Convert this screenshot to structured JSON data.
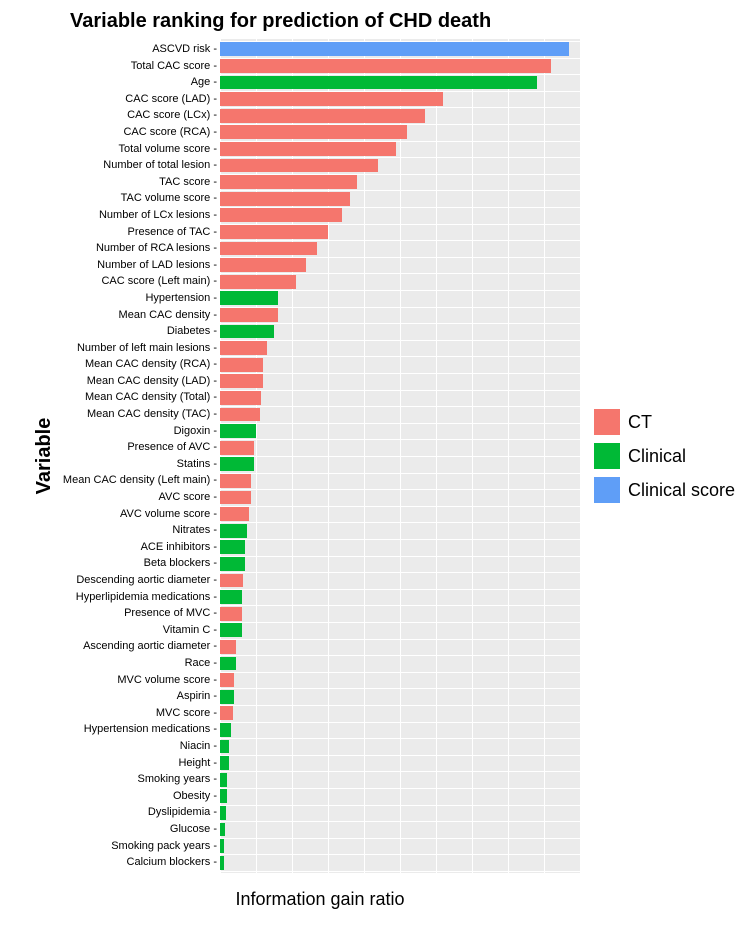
{
  "chart": {
    "type": "bar",
    "title": "Variable ranking for prediction of CHD death",
    "xlabel": "Information gain ratio",
    "ylabel": "Variable",
    "xlim": [
      0,
      1
    ],
    "background_color": "#ebebeb",
    "grid_color": "#ffffff",
    "bar_height_ratio": 0.84,
    "vgrid_steps": 10,
    "title_fontsize": 20,
    "axis_label_fontsize": 18,
    "tick_label_fontsize": 11,
    "legend_fontsize": 18,
    "categories": {
      "CT": {
        "color": "#f5766d",
        "label": "CT"
      },
      "Clinical": {
        "color": "#00b936",
        "label": "Clinical"
      },
      "ClinicalScore": {
        "color": "#5f9ef7",
        "label": "Clinical score"
      }
    },
    "legend_order": [
      "CT",
      "Clinical",
      "ClinicalScore"
    ],
    "items": [
      {
        "label": "ASCVD risk",
        "value": 0.97,
        "cat": "ClinicalScore"
      },
      {
        "label": "Total CAC score",
        "value": 0.92,
        "cat": "CT"
      },
      {
        "label": "Age",
        "value": 0.88,
        "cat": "Clinical"
      },
      {
        "label": "CAC score (LAD)",
        "value": 0.62,
        "cat": "CT"
      },
      {
        "label": "CAC score (LCx)",
        "value": 0.57,
        "cat": "CT"
      },
      {
        "label": "CAC score (RCA)",
        "value": 0.52,
        "cat": "CT"
      },
      {
        "label": "Total volume score",
        "value": 0.49,
        "cat": "CT"
      },
      {
        "label": "Number of total lesion",
        "value": 0.44,
        "cat": "CT"
      },
      {
        "label": "TAC score",
        "value": 0.38,
        "cat": "CT"
      },
      {
        "label": "TAC volume score",
        "value": 0.36,
        "cat": "CT"
      },
      {
        "label": "Number of LCx lesions",
        "value": 0.34,
        "cat": "CT"
      },
      {
        "label": "Presence of TAC",
        "value": 0.3,
        "cat": "CT"
      },
      {
        "label": "Number of RCA lesions",
        "value": 0.27,
        "cat": "CT"
      },
      {
        "label": "Number of LAD lesions",
        "value": 0.24,
        "cat": "CT"
      },
      {
        "label": "CAC score (Left main)",
        "value": 0.21,
        "cat": "CT"
      },
      {
        "label": "Hypertension",
        "value": 0.16,
        "cat": "Clinical"
      },
      {
        "label": "Mean CAC density",
        "value": 0.16,
        "cat": "CT"
      },
      {
        "label": "Diabetes",
        "value": 0.15,
        "cat": "Clinical"
      },
      {
        "label": "Number of left main lesions",
        "value": 0.13,
        "cat": "CT"
      },
      {
        "label": "Mean CAC density (RCA)",
        "value": 0.12,
        "cat": "CT"
      },
      {
        "label": "Mean CAC density (LAD)",
        "value": 0.12,
        "cat": "CT"
      },
      {
        "label": "Mean CAC density (Total)",
        "value": 0.115,
        "cat": "CT"
      },
      {
        "label": "Mean CAC density (TAC)",
        "value": 0.11,
        "cat": "CT"
      },
      {
        "label": "Digoxin",
        "value": 0.1,
        "cat": "Clinical"
      },
      {
        "label": "Presence of AVC",
        "value": 0.095,
        "cat": "CT"
      },
      {
        "label": "Statins",
        "value": 0.095,
        "cat": "Clinical"
      },
      {
        "label": "Mean CAC density (Left main)",
        "value": 0.085,
        "cat": "CT"
      },
      {
        "label": "AVC score",
        "value": 0.085,
        "cat": "CT"
      },
      {
        "label": "AVC volume score",
        "value": 0.08,
        "cat": "CT"
      },
      {
        "label": "Nitrates",
        "value": 0.075,
        "cat": "Clinical"
      },
      {
        "label": "ACE inhibitors",
        "value": 0.07,
        "cat": "Clinical"
      },
      {
        "label": "Beta blockers",
        "value": 0.07,
        "cat": "Clinical"
      },
      {
        "label": "Descending aortic diameter",
        "value": 0.065,
        "cat": "CT"
      },
      {
        "label": "Hyperlipidemia medications",
        "value": 0.06,
        "cat": "Clinical"
      },
      {
        "label": "Presence of MVC",
        "value": 0.06,
        "cat": "CT"
      },
      {
        "label": "Vitamin C",
        "value": 0.06,
        "cat": "Clinical"
      },
      {
        "label": "Ascending aortic diameter",
        "value": 0.045,
        "cat": "CT"
      },
      {
        "label": "Race",
        "value": 0.045,
        "cat": "Clinical"
      },
      {
        "label": "MVC volume score",
        "value": 0.04,
        "cat": "CT"
      },
      {
        "label": "Aspirin",
        "value": 0.04,
        "cat": "Clinical"
      },
      {
        "label": "MVC score",
        "value": 0.035,
        "cat": "CT"
      },
      {
        "label": "Hypertension medications",
        "value": 0.03,
        "cat": "Clinical"
      },
      {
        "label": "Niacin",
        "value": 0.025,
        "cat": "Clinical"
      },
      {
        "label": "Height",
        "value": 0.025,
        "cat": "Clinical"
      },
      {
        "label": "Smoking years",
        "value": 0.02,
        "cat": "Clinical"
      },
      {
        "label": "Obesity",
        "value": 0.02,
        "cat": "Clinical"
      },
      {
        "label": "Dyslipidemia",
        "value": 0.018,
        "cat": "Clinical"
      },
      {
        "label": "Glucose",
        "value": 0.015,
        "cat": "Clinical"
      },
      {
        "label": "Smoking pack years",
        "value": 0.012,
        "cat": "Clinical"
      },
      {
        "label": "Calcium blockers",
        "value": 0.01,
        "cat": "Clinical"
      }
    ]
  }
}
